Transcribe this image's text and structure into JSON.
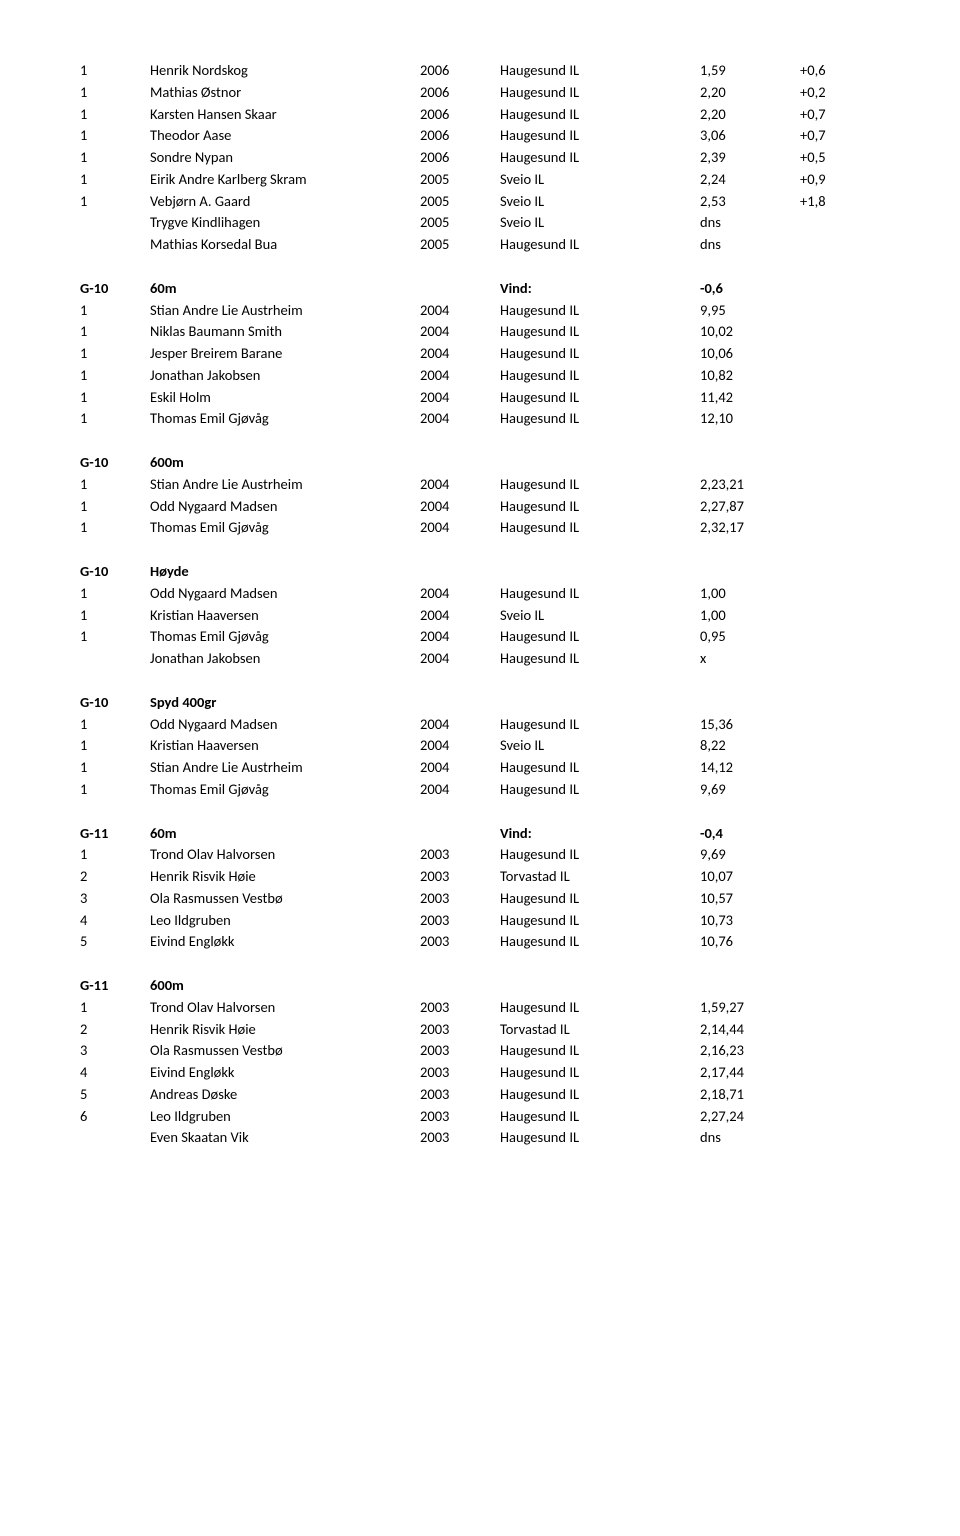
{
  "sections": [
    {
      "header": null,
      "rows": [
        {
          "c1": "1",
          "c2": "Henrik Nordskog",
          "c3": "2006",
          "c4": "Haugesund IL",
          "c5": "1,59",
          "c6": "+0,6"
        },
        {
          "c1": "1",
          "c2": "Mathias Østnor",
          "c3": "2006",
          "c4": "Haugesund IL",
          "c5": "2,20",
          "c6": "+0,2"
        },
        {
          "c1": "1",
          "c2": "Karsten Hansen Skaar",
          "c3": "2006",
          "c4": "Haugesund IL",
          "c5": "2,20",
          "c6": "+0,7"
        },
        {
          "c1": "1",
          "c2": "Theodor Aase",
          "c3": "2006",
          "c4": "Haugesund IL",
          "c5": "3,06",
          "c6": "+0,7"
        },
        {
          "c1": "1",
          "c2": "Sondre Nypan",
          "c3": "2006",
          "c4": "Haugesund IL",
          "c5": "2,39",
          "c6": "+0,5"
        },
        {
          "c1": "1",
          "c2": "Eirik Andre Karlberg Skram",
          "c3": "2005",
          "c4": "Sveio IL",
          "c5": "2,24",
          "c6": "+0,9"
        },
        {
          "c1": "1",
          "c2": "Vebjørn A. Gaard",
          "c3": "2005",
          "c4": "Sveio IL",
          "c5": "2,53",
          "c6": "+1,8"
        },
        {
          "c1": "",
          "c2": "Trygve Kindlihagen",
          "c3": "2005",
          "c4": "Sveio IL",
          "c5": "dns",
          "c6": ""
        },
        {
          "c1": "",
          "c2": "Mathias Korsedal Bua",
          "c3": "2005",
          "c4": "Haugesund IL",
          "c5": "dns",
          "c6": ""
        }
      ]
    },
    {
      "header": {
        "c1": "G-10",
        "c2": "60m",
        "c3": "",
        "c4": "Vind:",
        "c5": "-0,6",
        "c6": ""
      },
      "rows": [
        {
          "c1": "1",
          "c2": "Stian Andre Lie Austrheim",
          "c3": "2004",
          "c4": "Haugesund IL",
          "c5": "9,95",
          "c6": ""
        },
        {
          "c1": "1",
          "c2": "Niklas Baumann Smith",
          "c3": "2004",
          "c4": "Haugesund IL",
          "c5": "10,02",
          "c6": ""
        },
        {
          "c1": "1",
          "c2": "Jesper Breirem Barane",
          "c3": "2004",
          "c4": "Haugesund IL",
          "c5": "10,06",
          "c6": ""
        },
        {
          "c1": "1",
          "c2": "Jonathan Jakobsen",
          "c3": "2004",
          "c4": "Haugesund IL",
          "c5": "10,82",
          "c6": ""
        },
        {
          "c1": "1",
          "c2": "Eskil Holm",
          "c3": "2004",
          "c4": "Haugesund IL",
          "c5": "11,42",
          "c6": ""
        },
        {
          "c1": "1",
          "c2": "Thomas Emil Gjøvåg",
          "c3": "2004",
          "c4": "Haugesund IL",
          "c5": "12,10",
          "c6": ""
        }
      ]
    },
    {
      "header": {
        "c1": "G-10",
        "c2": "600m",
        "c3": "",
        "c4": "",
        "c5": "",
        "c6": ""
      },
      "rows": [
        {
          "c1": "1",
          "c2": "Stian Andre Lie Austrheim",
          "c3": "2004",
          "c4": "Haugesund IL",
          "c5": "2,23,21",
          "c6": ""
        },
        {
          "c1": "1",
          "c2": "Odd Nygaard Madsen",
          "c3": "2004",
          "c4": "Haugesund IL",
          "c5": "2,27,87",
          "c6": ""
        },
        {
          "c1": "1",
          "c2": "Thomas Emil Gjøvåg",
          "c3": "2004",
          "c4": "Haugesund IL",
          "c5": "2,32,17",
          "c6": ""
        }
      ]
    },
    {
      "header": {
        "c1": "G-10",
        "c2": "Høyde",
        "c3": "",
        "c4": "",
        "c5": "",
        "c6": ""
      },
      "rows": [
        {
          "c1": "1",
          "c2": "Odd Nygaard Madsen",
          "c3": "2004",
          "c4": "Haugesund IL",
          "c5": "1,00",
          "c6": ""
        },
        {
          "c1": "1",
          "c2": "Kristian Haaversen",
          "c3": "2004",
          "c4": "Sveio IL",
          "c5": "1,00",
          "c6": ""
        },
        {
          "c1": "1",
          "c2": "Thomas Emil Gjøvåg",
          "c3": "2004",
          "c4": "Haugesund IL",
          "c5": "0,95",
          "c6": ""
        },
        {
          "c1": "",
          "c2": "Jonathan Jakobsen",
          "c3": "2004",
          "c4": "Haugesund IL",
          "c5": "x",
          "c6": ""
        }
      ]
    },
    {
      "header": {
        "c1": "G-10",
        "c2": "Spyd 400gr",
        "c3": "",
        "c4": "",
        "c5": "",
        "c6": ""
      },
      "rows": [
        {
          "c1": "1",
          "c2": "Odd Nygaard Madsen",
          "c3": "2004",
          "c4": "Haugesund IL",
          "c5": "15,36",
          "c6": ""
        },
        {
          "c1": "1",
          "c2": "Kristian Haaversen",
          "c3": "2004",
          "c4": "Sveio IL",
          "c5": "8,22",
          "c6": ""
        },
        {
          "c1": "1",
          "c2": "Stian Andre Lie Austrheim",
          "c3": "2004",
          "c4": "Haugesund IL",
          "c5": "14,12",
          "c6": ""
        },
        {
          "c1": "1",
          "c2": "Thomas Emil Gjøvåg",
          "c3": "2004",
          "c4": "Haugesund IL",
          "c5": "9,69",
          "c6": ""
        }
      ]
    },
    {
      "header": {
        "c1": "G-11",
        "c2": "60m",
        "c3": "",
        "c4": "Vind:",
        "c5": "-0,4",
        "c6": ""
      },
      "rows": [
        {
          "c1": "1",
          "c2": "Trond Olav Halvorsen",
          "c3": "2003",
          "c4": "Haugesund IL",
          "c5": "9,69",
          "c6": ""
        },
        {
          "c1": "2",
          "c2": "Henrik Risvik Høie",
          "c3": "2003",
          "c4": "Torvastad IL",
          "c5": "10,07",
          "c6": ""
        },
        {
          "c1": "3",
          "c2": "Ola Rasmussen Vestbø",
          "c3": "2003",
          "c4": "Haugesund IL",
          "c5": "10,57",
          "c6": ""
        },
        {
          "c1": "4",
          "c2": "Leo Ildgruben",
          "c3": "2003",
          "c4": "Haugesund IL",
          "c5": "10,73",
          "c6": ""
        },
        {
          "c1": "5",
          "c2": "Eivind Engløkk",
          "c3": "2003",
          "c4": "Haugesund IL",
          "c5": "10,76",
          "c6": ""
        }
      ]
    },
    {
      "header": {
        "c1": "G-11",
        "c2": "600m",
        "c3": "",
        "c4": "",
        "c5": "",
        "c6": ""
      },
      "rows": [
        {
          "c1": "1",
          "c2": "Trond Olav Halvorsen",
          "c3": "2003",
          "c4": "Haugesund IL",
          "c5": "1,59,27",
          "c6": ""
        },
        {
          "c1": "2",
          "c2": "Henrik Risvik Høie",
          "c3": "2003",
          "c4": "Torvastad IL",
          "c5": "2,14,44",
          "c6": ""
        },
        {
          "c1": "3",
          "c2": "Ola Rasmussen Vestbø",
          "c3": "2003",
          "c4": "Haugesund IL",
          "c5": "2,16,23",
          "c6": ""
        },
        {
          "c1": "4",
          "c2": "Eivind Engløkk",
          "c3": "2003",
          "c4": "Haugesund IL",
          "c5": "2,17,44",
          "c6": ""
        },
        {
          "c1": "5",
          "c2": "Andreas Døske",
          "c3": "2003",
          "c4": "Haugesund IL",
          "c5": "2,18,71",
          "c6": ""
        },
        {
          "c1": "6",
          "c2": "Leo Ildgruben",
          "c3": "2003",
          "c4": "Haugesund IL",
          "c5": "2,27,24",
          "c6": ""
        },
        {
          "c1": "",
          "c2": "Even Skaatan Vik",
          "c3": "2003",
          "c4": "Haugesund IL",
          "c5": "dns",
          "c6": ""
        }
      ]
    }
  ]
}
